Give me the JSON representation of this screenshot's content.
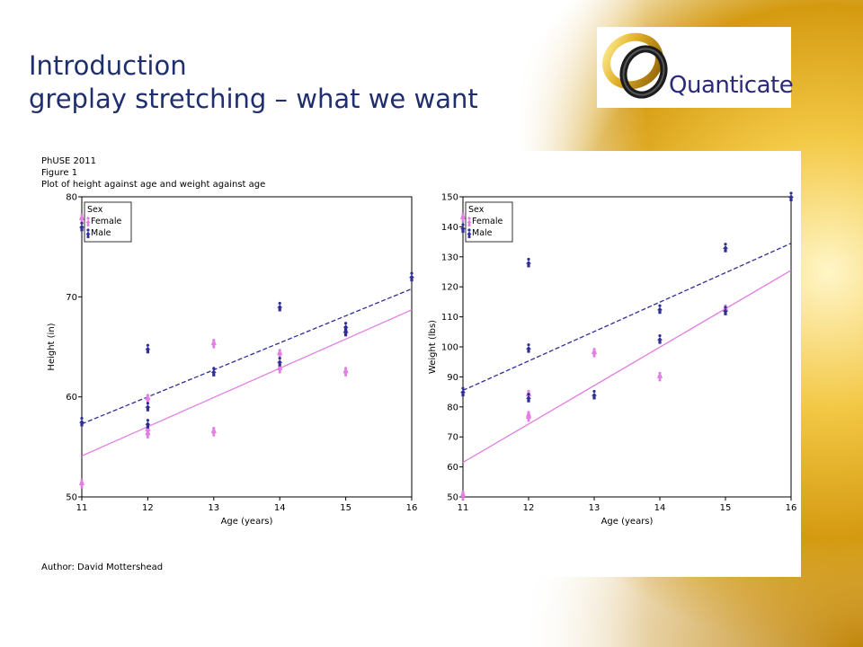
{
  "slide": {
    "title_line1": "Introduction",
    "title_line2": "greplay stretching – what we want",
    "logo_text": "Quanticate"
  },
  "figure": {
    "header": [
      "PhUSE 2011",
      "Figure 1",
      "Plot of height against age and weight against age"
    ],
    "author": "Author: David Mottershead"
  },
  "colors": {
    "female": "#e37ee3",
    "male": "#2e2e96",
    "title": "#1f2f6e"
  },
  "chart_data": [
    {
      "type": "scatter",
      "xlabel": "Age (years)",
      "ylabel": "Height (in)",
      "xlim": [
        11,
        16
      ],
      "ylim": [
        50,
        80
      ],
      "xticks": [
        11,
        12,
        13,
        14,
        15,
        16
      ],
      "yticks": [
        50,
        60,
        70,
        80
      ],
      "legend": {
        "title": "Sex",
        "placement": "top-left",
        "entries": [
          "Female",
          "Male"
        ]
      },
      "series": [
        {
          "name": "Female",
          "color": "#e37ee3",
          "x": [
            11,
            11,
            12,
            12,
            12,
            13,
            13,
            14,
            14,
            15,
            15
          ],
          "y": [
            51.3,
            77.8,
            56.3,
            59.8,
            56.7,
            65.3,
            56.5,
            64.3,
            62.8,
            66.5,
            62.5
          ],
          "fit": [
            [
              11,
              54.1
            ],
            [
              16,
              68.7
            ]
          ]
        },
        {
          "name": "Male",
          "color": "#2e2e96",
          "x": [
            11,
            11,
            12,
            12,
            12,
            13,
            14,
            14,
            15,
            15,
            16
          ],
          "y": [
            57.5,
            77.0,
            64.8,
            59.0,
            57.3,
            62.5,
            69.0,
            63.5,
            67.0,
            66.5,
            72.0
          ],
          "fit": [
            [
              11,
              57.3
            ],
            [
              16,
              70.8
            ]
          ]
        }
      ]
    },
    {
      "type": "scatter",
      "xlabel": "Age (years)",
      "ylabel": "Weight (lbs)",
      "xlim": [
        11,
        16
      ],
      "ylim": [
        50,
        150
      ],
      "xticks": [
        11,
        12,
        13,
        14,
        15,
        16
      ],
      "yticks": [
        50,
        60,
        70,
        80,
        90,
        100,
        110,
        120,
        130,
        140,
        150
      ],
      "legend": {
        "title": "Sex",
        "placement": "top-left",
        "entries": [
          "Female",
          "Male"
        ]
      },
      "series": [
        {
          "name": "Female",
          "color": "#e37ee3",
          "x": [
            11,
            11,
            12,
            12,
            12,
            13,
            14,
            15
          ],
          "y": [
            50.5,
            143,
            77,
            84,
            76.5,
            98,
            90,
            112.5
          ],
          "fit": [
            [
              11,
              61.5
            ],
            [
              16,
              125.5
            ]
          ]
        },
        {
          "name": "Male",
          "color": "#2e2e96",
          "x": [
            11,
            11,
            12,
            12,
            12,
            13,
            14,
            14,
            15,
            15,
            16
          ],
          "y": [
            85,
            139.5,
            128,
            99.5,
            83,
            84,
            112.5,
            102.5,
            133,
            112,
            150
          ],
          "fit": [
            [
              11,
              85.5
            ],
            [
              16,
              134.5
            ]
          ]
        }
      ]
    }
  ]
}
